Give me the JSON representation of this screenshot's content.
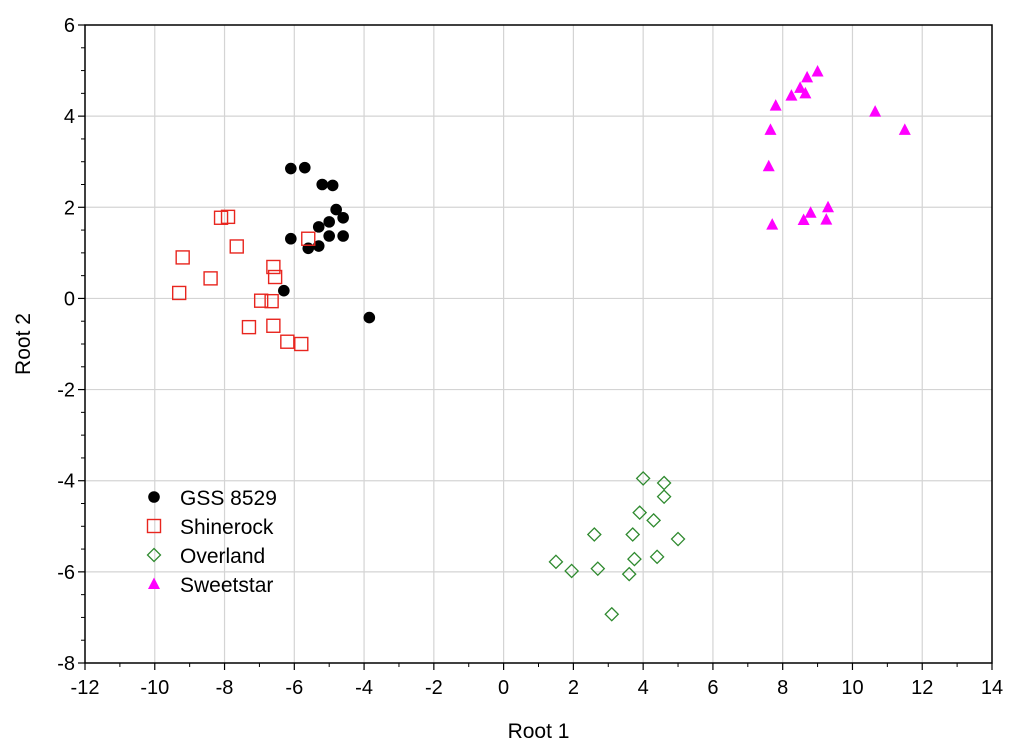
{
  "chart_data": {
    "type": "scatter",
    "title": "",
    "xlabel": "Root 1",
    "ylabel": "Root 2",
    "xlim": [
      -12,
      14
    ],
    "ylim": [
      -8,
      6
    ],
    "xticks": [
      -12,
      -10,
      -8,
      -6,
      -4,
      -2,
      0,
      2,
      4,
      6,
      8,
      10,
      12,
      14
    ],
    "yticks": [
      -8,
      -6,
      -4,
      -2,
      0,
      2,
      4,
      6
    ],
    "grid": true,
    "legend_position": "bottom-left",
    "series": [
      {
        "name": "GSS 8529",
        "marker": "circle-filled",
        "color": "#000000",
        "points": [
          [
            -6.1,
            2.85
          ],
          [
            -5.7,
            2.87
          ],
          [
            -5.2,
            2.5
          ],
          [
            -4.9,
            2.48
          ],
          [
            -4.8,
            1.95
          ],
          [
            -4.6,
            1.77
          ],
          [
            -5.0,
            1.68
          ],
          [
            -5.3,
            1.57
          ],
          [
            -5.0,
            1.37
          ],
          [
            -4.6,
            1.37
          ],
          [
            -6.1,
            1.31
          ],
          [
            -5.6,
            1.1
          ],
          [
            -5.3,
            1.15
          ],
          [
            -6.3,
            0.17
          ],
          [
            -3.85,
            -0.42
          ]
        ]
      },
      {
        "name": "Shinerock",
        "marker": "square-open",
        "color": "#e8251e",
        "points": [
          [
            -8.1,
            1.77
          ],
          [
            -7.9,
            1.79
          ],
          [
            -7.65,
            1.14
          ],
          [
            -9.2,
            0.9
          ],
          [
            -8.4,
            0.44
          ],
          [
            -9.3,
            0.12
          ],
          [
            -6.6,
            0.69
          ],
          [
            -6.55,
            0.47
          ],
          [
            -6.95,
            -0.05
          ],
          [
            -6.65,
            -0.06
          ],
          [
            -7.3,
            -0.63
          ],
          [
            -6.6,
            -0.6
          ],
          [
            -6.2,
            -0.95
          ],
          [
            -5.8,
            -1.0
          ],
          [
            -5.6,
            1.31
          ]
        ]
      },
      {
        "name": "Overland",
        "marker": "diamond-open",
        "color": "#2f8a2f",
        "points": [
          [
            4.0,
            -3.95
          ],
          [
            4.6,
            -4.05
          ],
          [
            4.6,
            -4.35
          ],
          [
            3.9,
            -4.7
          ],
          [
            4.3,
            -4.87
          ],
          [
            2.6,
            -5.18
          ],
          [
            3.7,
            -5.18
          ],
          [
            5.0,
            -5.28
          ],
          [
            1.5,
            -5.78
          ],
          [
            1.95,
            -5.98
          ],
          [
            2.7,
            -5.93
          ],
          [
            3.75,
            -5.72
          ],
          [
            4.4,
            -5.67
          ],
          [
            3.6,
            -6.05
          ],
          [
            3.1,
            -6.93
          ]
        ]
      },
      {
        "name": "Sweetstar",
        "marker": "triangle-filled",
        "color": "#ff00ff",
        "points": [
          [
            9.0,
            4.98
          ],
          [
            8.7,
            4.85
          ],
          [
            8.5,
            4.62
          ],
          [
            8.65,
            4.5
          ],
          [
            8.25,
            4.45
          ],
          [
            7.8,
            4.23
          ],
          [
            7.65,
            3.7
          ],
          [
            7.6,
            2.9
          ],
          [
            10.65,
            4.1
          ],
          [
            11.5,
            3.7
          ],
          [
            9.3,
            2.0
          ],
          [
            8.8,
            1.88
          ],
          [
            8.6,
            1.72
          ],
          [
            9.25,
            1.73
          ],
          [
            7.7,
            1.62
          ]
        ]
      }
    ]
  }
}
